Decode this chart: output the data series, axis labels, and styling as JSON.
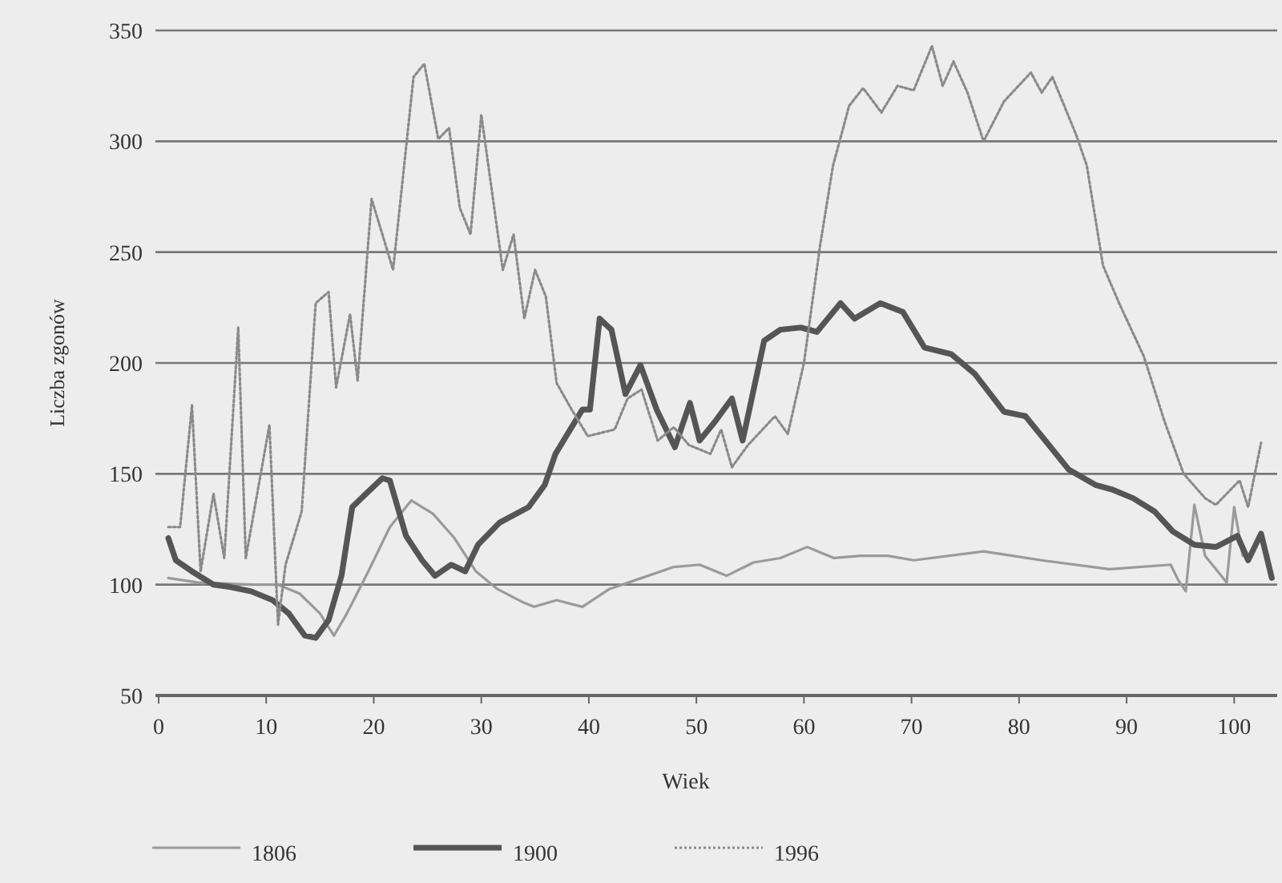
{
  "chart_data": {
    "type": "line",
    "xlabel": "Wiek",
    "ylabel": "Liczba zgonów",
    "xlim": [
      0,
      104
    ],
    "xticks": [
      0,
      10,
      20,
      30,
      40,
      50,
      60,
      70,
      80,
      90,
      100
    ],
    "ylim": [
      50,
      350
    ],
    "yticks": [
      50,
      100,
      150,
      200,
      250,
      300,
      350
    ],
    "grid": "y",
    "legend": "bottom",
    "marker": "none",
    "series": [
      {
        "name": "1806",
        "color": "#9a9a9a",
        "line_style": "solid",
        "x": [
          0.9,
          3.6,
          8.6,
          11.1,
          13.1,
          15,
          16.3,
          17.5,
          19.5,
          21.5,
          23.5,
          25.5,
          27.5,
          29.5,
          31.5,
          33.9,
          34.9,
          37,
          39.4,
          41.9,
          44.9,
          47.9,
          50.3,
          52.8,
          55.3,
          57.8,
          60.3,
          62.8,
          65.3,
          67.8,
          70.2,
          76.7,
          82.1,
          88.4,
          94.1,
          94.8,
          95.5,
          96.3,
          97.3,
          99.3,
          100,
          100.8
        ],
        "values": [
          103,
          101,
          100,
          100,
          96,
          87,
          77,
          87,
          106,
          126,
          138,
          132,
          121,
          106,
          98,
          92,
          90,
          93,
          90,
          98,
          103,
          108,
          109,
          104,
          110,
          112,
          117,
          112,
          113,
          113,
          111,
          115,
          111,
          107,
          109,
          102,
          97,
          136,
          113,
          101,
          135,
          113
        ]
      },
      {
        "name": "1900",
        "color": "#555555",
        "line_style": "solid",
        "x": [
          0.9,
          1.6,
          3.1,
          5.1,
          6.6,
          8.6,
          10.6,
          12.1,
          13.6,
          14.6,
          15.8,
          17,
          18,
          19.5,
          20.8,
          21.5,
          23,
          24.5,
          25.7,
          27.2,
          28.5,
          29.7,
          31.7,
          34.4,
          35.9,
          36.9,
          38.4,
          39.4,
          40.1,
          41,
          42.1,
          43.4,
          44.8,
          46.3,
          48,
          49.4,
          50.3,
          51.8,
          53.3,
          54.3,
          56.3,
          57.8,
          59.7,
          61.2,
          63.4,
          64.7,
          67.1,
          69.2,
          71.2,
          73.7,
          75.9,
          78.6,
          80.6,
          82.6,
          84.6,
          87.1,
          88.6,
          90.6,
          92.6,
          94.3,
          96.3,
          98.3,
          100.3,
          101.3,
          102.5,
          103.5
        ],
        "values": [
          121,
          111,
          106,
          100,
          99,
          97,
          93,
          87,
          77,
          76,
          84,
          104,
          135,
          142,
          148,
          147,
          122,
          111,
          104,
          109,
          106,
          118,
          128,
          135,
          145,
          159,
          171,
          179,
          179,
          220,
          215,
          186,
          199,
          179,
          162,
          182,
          165,
          174,
          184,
          165,
          210,
          215,
          216,
          214,
          227,
          220,
          227,
          223,
          207,
          204,
          195,
          178,
          176,
          164,
          152,
          145,
          143,
          139,
          133,
          124,
          118,
          117,
          122,
          111,
          123,
          103
        ]
      },
      {
        "name": "1996",
        "color": "#8a8a8a",
        "line_style": "dotted",
        "x": [
          0.9,
          2,
          3.1,
          3.9,
          5.1,
          6.1,
          7.4,
          8.1,
          10.3,
          11.1,
          11.8,
          13.3,
          14.6,
          15.8,
          16.5,
          17.8,
          18.5,
          19.8,
          21.8,
          23.7,
          24.7,
          26,
          27,
          28,
          29,
          30,
          32,
          33,
          34,
          35,
          36,
          37,
          38.4,
          39.9,
          42.4,
          43.6,
          44.9,
          46.4,
          47.9,
          49.3,
          51.3,
          52.3,
          53.3,
          54.8,
          57.3,
          58.5,
          60,
          61.5,
          62.7,
          64.2,
          65.5,
          67.2,
          68.7,
          70.2,
          71.9,
          72.9,
          73.9,
          75.2,
          76.7,
          78.6,
          81.1,
          82.1,
          83.1,
          85.3,
          86.3,
          87.8,
          89.3,
          91.6,
          93.5,
          95.3,
          97.3,
          98.3,
          100.5,
          101.3,
          102.5
        ],
        "values": [
          126,
          126,
          181,
          106,
          141,
          112,
          216,
          112,
          172,
          82,
          109,
          133,
          227,
          232,
          189,
          222,
          192,
          274,
          242,
          329,
          335,
          301,
          306,
          270,
          258,
          312,
          242,
          258,
          220,
          242,
          230,
          191,
          179,
          167,
          170,
          184,
          188,
          165,
          171,
          163,
          159,
          170,
          153,
          163,
          176,
          168,
          200,
          253,
          289,
          316,
          324,
          313,
          325,
          323,
          343,
          325,
          336,
          322,
          300,
          318,
          331,
          322,
          329,
          303,
          289,
          244,
          227,
          203,
          174,
          150,
          139,
          136,
          147,
          135,
          164
        ]
      }
    ]
  }
}
